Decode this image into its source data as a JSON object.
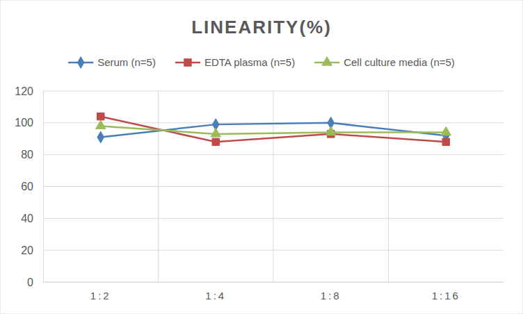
{
  "chart_data": {
    "type": "line",
    "title": "LINEARITY(%)",
    "categories": [
      "1:2",
      "1:4",
      "1:8",
      "1:16"
    ],
    "series": [
      {
        "name": "Serum (n=5)",
        "color": "#4a7ebb",
        "marker": "diamond",
        "values": [
          91,
          99,
          100,
          92
        ]
      },
      {
        "name": "EDTA plasma (n=5)",
        "color": "#be4b48",
        "marker": "square",
        "values": [
          104,
          88,
          93,
          88
        ]
      },
      {
        "name": "Cell culture media (n=5)",
        "color": "#9bbb59",
        "marker": "triangle",
        "values": [
          98,
          93,
          94,
          94
        ]
      }
    ],
    "ylim": [
      0,
      120
    ],
    "yticks": [
      0,
      20,
      40,
      60,
      80,
      100,
      120
    ],
    "grid": true,
    "legend": "top"
  }
}
